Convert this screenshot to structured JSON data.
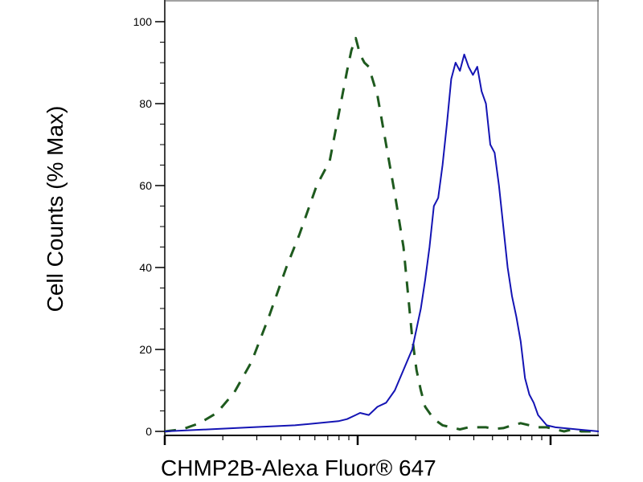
{
  "chart_data": {
    "type": "line",
    "title": "",
    "xlabel": "CHMP2B-Alexa Fluor® 647",
    "ylabel": "Cell Counts (% Max)",
    "x_scale": "log",
    "ylim": [
      0,
      100
    ],
    "y_ticks": [
      "0",
      "20",
      "40",
      "60",
      "80",
      "100"
    ],
    "x_major_ticks": 3,
    "legend": "none",
    "grid": false,
    "series": [
      {
        "style": "dashed",
        "color": "#1e5a1e",
        "x": [
          0.0,
          0.04,
          0.08,
          0.12,
          0.16,
          0.2,
          0.24,
          0.28,
          0.31,
          0.35,
          0.38,
          0.4,
          0.42,
          0.43,
          0.44,
          0.45,
          0.46,
          0.47,
          0.49,
          0.51,
          0.53,
          0.55,
          0.56,
          0.57,
          0.58,
          0.59,
          0.6,
          0.62,
          0.64,
          0.66,
          0.68,
          0.7,
          0.72,
          0.74,
          0.76,
          0.78,
          0.8,
          0.82,
          0.84,
          0.86,
          0.88,
          0.9,
          0.92,
          0.94,
          0.96,
          1.0
        ],
        "y": [
          0.0,
          0.5,
          2.0,
          4.5,
          9.5,
          17.0,
          28.0,
          40.0,
          48.0,
          60.0,
          66.0,
          77.0,
          88.0,
          93.0,
          96.0,
          92.0,
          90.0,
          89.0,
          82.0,
          70.0,
          58.0,
          45.0,
          34.0,
          23.0,
          15.0,
          10.0,
          6.0,
          3.0,
          1.5,
          1.0,
          0.5,
          1.0,
          1.0,
          1.0,
          0.6,
          0.8,
          1.5,
          2.0,
          1.5,
          1.0,
          1.0,
          0.5,
          0.0,
          0.5,
          0.0,
          0.0
        ]
      },
      {
        "style": "solid",
        "color": "#1414b4",
        "x": [
          0.0,
          0.1,
          0.2,
          0.3,
          0.4,
          0.42,
          0.44,
          0.45,
          0.47,
          0.49,
          0.51,
          0.53,
          0.55,
          0.57,
          0.58,
          0.59,
          0.6,
          0.61,
          0.62,
          0.63,
          0.64,
          0.65,
          0.66,
          0.67,
          0.68,
          0.69,
          0.7,
          0.71,
          0.72,
          0.73,
          0.74,
          0.75,
          0.76,
          0.77,
          0.78,
          0.79,
          0.8,
          0.81,
          0.82,
          0.83,
          0.84,
          0.85,
          0.86,
          0.88,
          0.9,
          0.95,
          1.0
        ],
        "y": [
          0.0,
          0.5,
          1.0,
          1.5,
          2.5,
          3.0,
          4.0,
          4.5,
          4.0,
          6.0,
          7.0,
          10.0,
          15.0,
          20.0,
          25.0,
          30.0,
          37.0,
          45.0,
          55.0,
          57.0,
          65.0,
          75.0,
          86.0,
          90.0,
          88.0,
          92.0,
          89.0,
          87.0,
          89.0,
          83.0,
          80.0,
          70.0,
          68.0,
          60.0,
          50.0,
          40.0,
          33.0,
          28.0,
          22.0,
          13.0,
          9.0,
          7.0,
          4.0,
          1.5,
          1.0,
          0.5,
          0.0
        ]
      }
    ]
  }
}
